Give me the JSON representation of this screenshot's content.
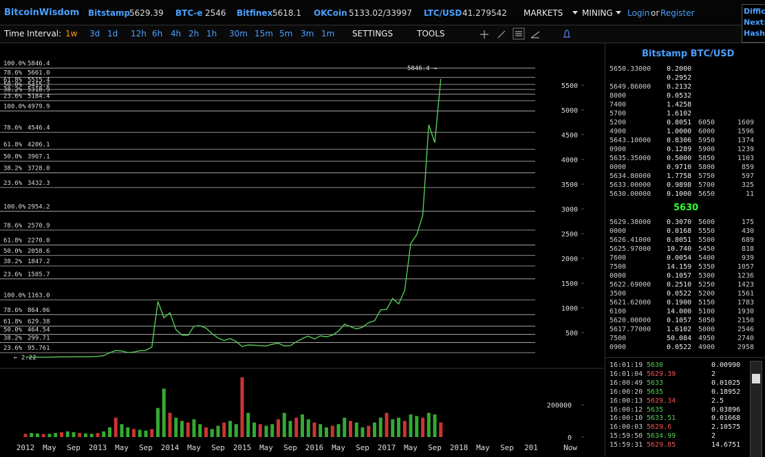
{
  "header": {
    "brand": "BitcoinWisdom",
    "tickers": [
      {
        "exchange": "Bitstamp",
        "price": 5629.39
      },
      {
        "exchange": "BTC-e",
        "price": 2546
      },
      {
        "exchange": "Bitfinex",
        "price": 5618.1
      },
      {
        "exchange": "OKCoin",
        "price": "5133.02/33997"
      },
      {
        "exchange": "LTC/USD",
        "price": 41.279542
      }
    ],
    "menus": [
      "MARKETS",
      "MINING"
    ],
    "login": "Login",
    "or": "or",
    "register": "Register",
    "side": [
      "Difficu",
      "Next:",
      "Hash"
    ]
  },
  "toolbar": {
    "label": "Time Interval:",
    "intervals": [
      "1w",
      "3d",
      "1d",
      "12h",
      "6h",
      "4h",
      "2h",
      "1h",
      "30m",
      "15m",
      "5m",
      "3m",
      "1m"
    ],
    "active": 0,
    "menus": [
      "SETTINGS",
      "TOOLS"
    ]
  },
  "price_chart": {
    "x_labels": [
      "2012",
      "May",
      "Sep",
      "2013",
      "May",
      "Sep",
      "2014",
      "May",
      "Sep",
      "2015",
      "May",
      "Sep",
      "2016",
      "May",
      "Sep",
      "2017",
      "May",
      "Sep",
      "2018",
      "May",
      "Sep",
      "201"
    ],
    "now_label": "Now",
    "ylim": [
      0,
      6000
    ],
    "yticks": [
      500,
      1000,
      1500,
      2000,
      2500,
      3000,
      3500,
      4000,
      4500,
      5000,
      5500
    ],
    "price": {
      "color": "#5c5",
      "values": [
        6,
        5,
        5,
        5,
        5,
        7,
        9,
        10,
        12,
        11,
        12,
        13,
        20,
        33,
        93,
        139,
        129,
        97,
        106,
        135,
        141,
        211,
        1130,
        800,
        900,
        560,
        450,
        445,
        630,
        640,
        590,
        480,
        390,
        340,
        380,
        320,
        220,
        250,
        245,
        235,
        230,
        265,
        285,
        230,
        235,
        315,
        380,
        430,
        370,
        435,
        415,
        450,
        530,
        670,
        620,
        575,
        610,
        700,
        740,
        960,
        970,
        1190,
        1080,
        1350,
        2300,
        2480,
        2870,
        4700,
        4340,
        5630
      ]
    },
    "volume": {
      "color": "#c33",
      "ylim": [
        0,
        200000
      ],
      "yticks": [
        0,
        200000
      ],
      "values": [
        20000,
        25000,
        22000,
        18000,
        20000,
        25000,
        30000,
        35000,
        30000,
        25000,
        22000,
        20000,
        25000,
        35000,
        60000,
        120000,
        80000,
        60000,
        50000,
        45000,
        40000,
        50000,
        180000,
        300000,
        150000,
        120000,
        100000,
        90000,
        110000,
        80000,
        60000,
        50000,
        70000,
        90000,
        100000,
        80000,
        370000,
        150000,
        90000,
        80000,
        70000,
        80000,
        110000,
        150000,
        100000,
        120000,
        140000,
        110000,
        90000,
        80000,
        60000,
        70000,
        80000,
        120000,
        100000,
        90000,
        60000,
        70000,
        90000,
        120000,
        150000,
        110000,
        120000,
        100000,
        140000,
        130000,
        120000,
        150000,
        140000,
        90000
      ]
    },
    "fib_levels": [
      {
        "pct": "100.0%",
        "value": 5846.4,
        "label": "5846.4"
      },
      {
        "pct": "78.6%",
        "value": 5661,
        "label": "5661.0"
      },
      {
        "pct": "61.8%",
        "value": 5515.4,
        "label": "5515.4"
      },
      {
        "pct": "50.0%",
        "value": 5415.2,
        "label": "5415.2"
      },
      {
        "pct": "38.2%",
        "value": 5318.9,
        "label": "5318.9"
      },
      {
        "pct": "23.6%",
        "value": 5184.4,
        "label": "5184.4"
      },
      {
        "pct": "100.0%",
        "value": 4979.9,
        "label": "4979.9"
      },
      {
        "pct": "78.6%",
        "value": 4546.4,
        "label": "4546.4"
      },
      {
        "pct": "61.8%",
        "value": 4206.1,
        "label": "4206.1"
      },
      {
        "pct": "50.0%",
        "value": 3967.1,
        "label": "3967.1"
      },
      {
        "pct": "38.2%",
        "value": 3728,
        "label": "3728.0"
      },
      {
        "pct": "23.6%",
        "value": 3432.3,
        "label": "3432.3"
      },
      {
        "pct": "100.0%",
        "value": 2954.2,
        "label": "2954.2"
      },
      {
        "pct": "78.6%",
        "value": 2570.9,
        "label": "2570.9"
      },
      {
        "pct": "61.8%",
        "value": 2270,
        "label": "2270.0"
      },
      {
        "pct": "50.0%",
        "value": 2058.6,
        "label": "2058.6"
      },
      {
        "pct": "38.2%",
        "value": 1847.2,
        "label": "1847.2"
      },
      {
        "pct": "23.6%",
        "value": 1585.7,
        "label": "1585.7"
      },
      {
        "pct": "100.0%",
        "value": 1163,
        "label": "1163.0"
      },
      {
        "pct": "78.6%",
        "value": 864.06,
        "label": "864.06"
      },
      {
        "pct": "61.8%",
        "value": 629.38,
        "label": "629.38"
      },
      {
        "pct": "50.0%",
        "value": 464.54,
        "label": "464.54"
      },
      {
        "pct": "38.2%",
        "value": 299.71,
        "label": "299.71"
      },
      {
        "pct": "23.6%",
        "value": 95.761,
        "label": "95.761"
      }
    ],
    "annotations": {
      "high": "5846.4 →",
      "low": "← 2.22"
    }
  },
  "order_book": {
    "title": "Bitstamp BTC/USD",
    "last": "5630",
    "asks": [
      [
        "5650.33000",
        "0.2000",
        null,
        null
      ],
      [
        null,
        "0.2952",
        null,
        null
      ],
      [
        "5649.86000",
        "0.2132",
        null,
        null
      ],
      [
        "8000",
        "0.0532",
        null,
        null
      ],
      [
        "7400",
        "1.4258",
        null,
        null
      ],
      [
        "5700",
        "1.6102",
        null,
        null
      ],
      [
        "5200",
        "0.8051",
        "6050",
        "1609"
      ],
      [
        "4900",
        "1.0000",
        "6000",
        "1596"
      ],
      [
        "5643.10000",
        "0.8306",
        "5950",
        "1374"
      ],
      [
        "0900",
        "0.1289",
        "5900",
        "1239"
      ],
      [
        "5635.35000",
        "0.5000",
        "5850",
        "1103"
      ],
      [
        "0000",
        "0.9710",
        "5800",
        "859"
      ],
      [
        "5634.80000",
        "1.7758",
        "5750",
        "597"
      ],
      [
        "5633.00000",
        "0.9898",
        "5700",
        "325"
      ],
      [
        "5630.00000",
        "0.1000",
        "5650",
        "11"
      ]
    ],
    "bids": [
      [
        "5629.38000",
        "0.3070",
        "5600",
        "175"
      ],
      [
        "0000",
        "0.0168",
        "5550",
        "430"
      ],
      [
        "5626.41000",
        "0.8051",
        "5500",
        "689"
      ],
      [
        "5625.97000",
        "10.740",
        "5450",
        "818"
      ],
      [
        "7600",
        "0.0054",
        "5400",
        "939"
      ],
      [
        "7500",
        "14.159",
        "5350",
        "1057"
      ],
      [
        "0000",
        "0.1057",
        "5300",
        "1236"
      ],
      [
        "5622.69000",
        "0.2510",
        "5250",
        "1423"
      ],
      [
        "3500",
        "0.0522",
        "5200",
        "1561"
      ],
      [
        "5621.62000",
        "0.1900",
        "5150",
        "1783"
      ],
      [
        "6100",
        "14.000",
        "5100",
        "1930"
      ],
      [
        "5620.00000",
        "0.1057",
        "5050",
        "2150"
      ],
      [
        "5617.77000",
        "1.6102",
        "5000",
        "2546"
      ],
      [
        "7500",
        "50.084",
        "4950",
        "2740"
      ],
      [
        "0900",
        "0.0522",
        "4900",
        "2958"
      ]
    ]
  },
  "trades": [
    {
      "time": "16:01:19",
      "price": "5630",
      "amount": "0.00990",
      "color": "#5c5"
    },
    {
      "time": "16:01:04",
      "price": "5629.39",
      "amount": "2",
      "color": "#e55"
    },
    {
      "time": "16:00:49",
      "price": "5633",
      "amount": "0.01025",
      "color": "#5c5"
    },
    {
      "time": "16:00:20",
      "price": "5635",
      "amount": "0.18952",
      "color": "#5c5"
    },
    {
      "time": "16:00:13",
      "price": "5629.34",
      "amount": "2.5",
      "color": "#e55"
    },
    {
      "time": "16:00:12",
      "price": "5635",
      "amount": "0.03896",
      "color": "#5c5"
    },
    {
      "time": "16:00:10",
      "price": "5633.51",
      "amount": "0.01668",
      "color": "#5c5"
    },
    {
      "time": "16:00:03",
      "price": "5629.6",
      "amount": "2.10575",
      "color": "#e55"
    },
    {
      "time": "15:59:50",
      "price": "5634.99",
      "amount": "2",
      "color": "#5c5"
    },
    {
      "time": "15:59:31",
      "price": "5629.85",
      "amount": "14.6751",
      "color": "#e55"
    }
  ]
}
